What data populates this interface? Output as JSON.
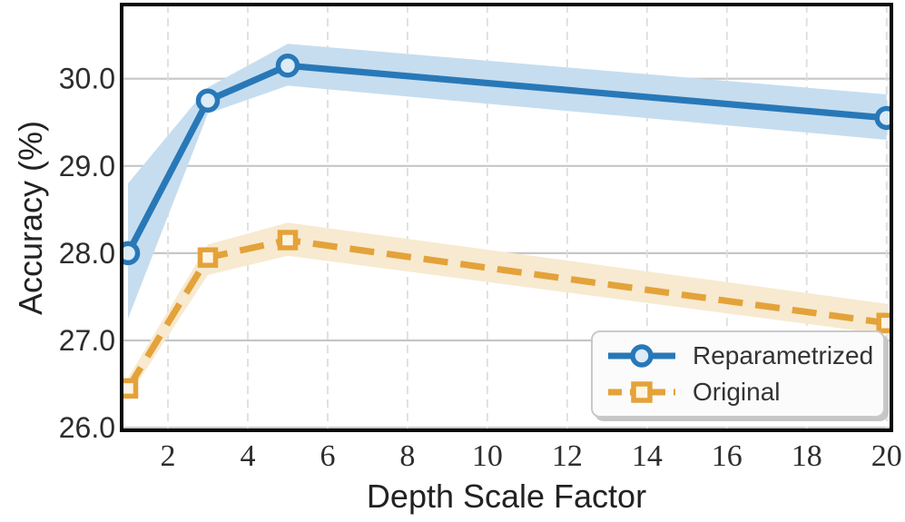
{
  "chart_data": {
    "type": "line",
    "title": "",
    "xlabel": "Depth Scale Factor",
    "ylabel": "Accuracy (%)",
    "x": [
      1,
      3,
      5,
      20
    ],
    "series": [
      {
        "name": "Reparametrized",
        "values": [
          28.0,
          29.75,
          30.15,
          29.55
        ],
        "band_low": [
          27.25,
          29.6,
          29.92,
          29.3
        ],
        "band_high": [
          28.8,
          29.9,
          30.4,
          29.82
        ],
        "color": "#2878b8",
        "band_color": "#c6ddef",
        "marker": "circle",
        "marker_face": "#dcebf6",
        "line_style": "solid"
      },
      {
        "name": "Original",
        "values": [
          26.45,
          27.95,
          28.15,
          27.2
        ],
        "band_low": [
          26.35,
          27.75,
          27.97,
          27.07
        ],
        "band_high": [
          26.57,
          28.1,
          28.35,
          27.42
        ],
        "color": "#e4a23a",
        "band_color": "#f7ead0",
        "marker": "square",
        "marker_face": "#fdf5e4",
        "line_style": "dashed"
      }
    ],
    "x_ticks": [
      2,
      4,
      6,
      8,
      10,
      12,
      14,
      16,
      18,
      20
    ],
    "y_ticks": [
      "26.0",
      "27.0",
      "28.0",
      "29.0",
      "30.0"
    ],
    "xlim": [
      0.84,
      20.12
    ],
    "ylim": [
      25.97,
      30.85
    ],
    "grid": {
      "h_style": "solid",
      "h_color": "#c6c6c6",
      "v_style": "dashed",
      "v_color": "#dedede"
    },
    "legend": {
      "position": "lower right",
      "items": [
        "Reparametrized",
        "Original"
      ]
    }
  },
  "frame_color": "#0a0a0a",
  "text_color": "#2d2d2d"
}
